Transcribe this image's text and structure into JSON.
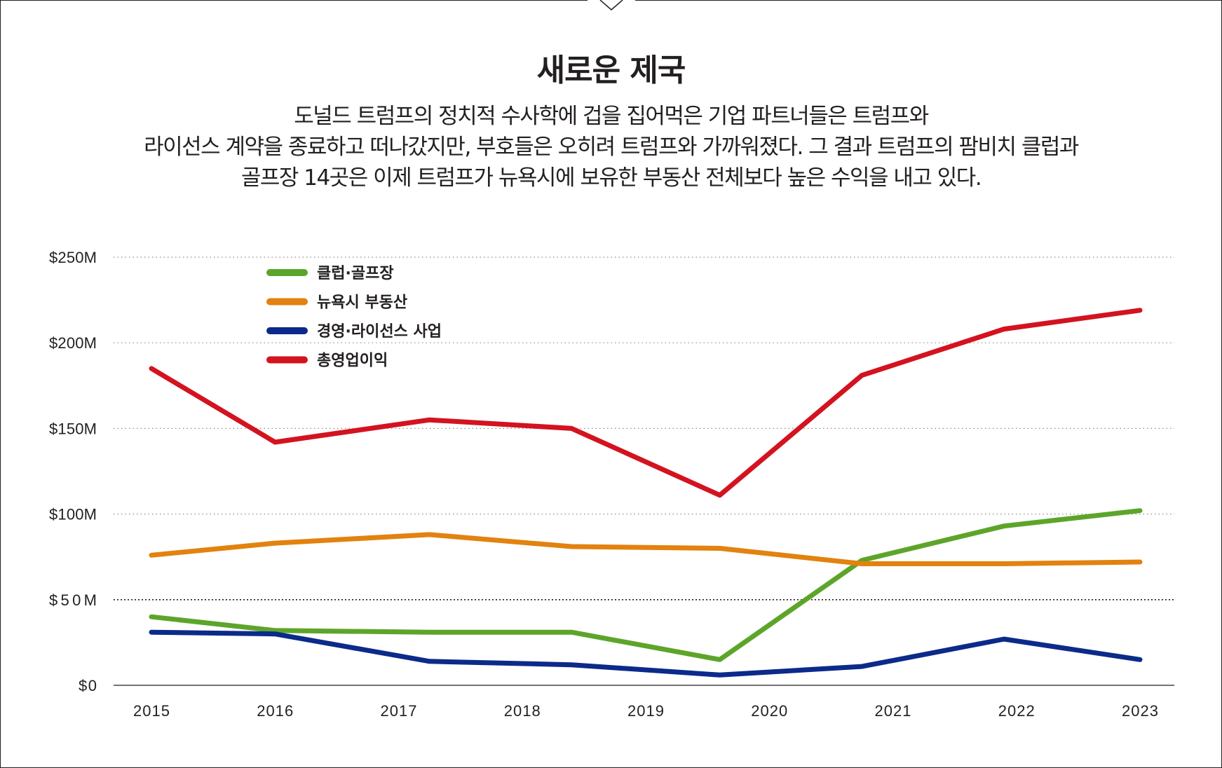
{
  "title": "새로운 제국",
  "subtitle": [
    "도널드 트럼프의 정치적 수사학에 겁을 집어먹은 기업 파트너들은 트럼프와",
    "라이선스 계약을 종료하고 떠나갔지만, 부호들은 오히려 트럼프와 가까워졌다. 그 결과 트럼프의 팜비치 클럽과",
    "골프장 14곳은 이제 트럼프가 뉴욕시에 보유한 부동산 전체보다 높은 수익을 내고 있다."
  ],
  "chart_data": {
    "type": "line",
    "title": "새로운 제국",
    "x": [
      "2015",
      "2016",
      "2017",
      "2018",
      "2019",
      "2020",
      "2021",
      "2022",
      "2023"
    ],
    "y_ticks": [
      "$0",
      "$50M",
      "$100M",
      "$150M",
      "$200M",
      "$250M"
    ],
    "ylim": [
      0,
      250
    ],
    "grid": true,
    "legend_position": "top-left",
    "series": [
      {
        "name": "클럽·골프장",
        "color": "#5da52a",
        "points": [
          [
            2015.0,
            40
          ],
          [
            2016.0,
            32
          ],
          [
            2017.25,
            31
          ],
          [
            2018.4,
            31
          ],
          [
            2019.6,
            15
          ],
          [
            2020.75,
            73
          ],
          [
            2021.9,
            93
          ],
          [
            2023.0,
            102
          ]
        ]
      },
      {
        "name": "뉴욕시 부동산",
        "color": "#e2820f",
        "points": [
          [
            2015.0,
            76
          ],
          [
            2016.0,
            83
          ],
          [
            2017.25,
            88
          ],
          [
            2018.4,
            81
          ],
          [
            2019.6,
            80
          ],
          [
            2020.75,
            71
          ],
          [
            2021.9,
            71
          ],
          [
            2023.0,
            72
          ]
        ]
      },
      {
        "name": "경영·라이선스 사업",
        "color": "#0b2a8a",
        "points": [
          [
            2015.0,
            31
          ],
          [
            2016.0,
            30
          ],
          [
            2017.25,
            14
          ],
          [
            2018.4,
            12
          ],
          [
            2019.6,
            6
          ],
          [
            2020.75,
            11
          ],
          [
            2021.9,
            27
          ],
          [
            2023.0,
            15
          ]
        ]
      },
      {
        "name": "총영업이익",
        "color": "#d3131f",
        "points": [
          [
            2015.0,
            185
          ],
          [
            2016.0,
            142
          ],
          [
            2017.25,
            155
          ],
          [
            2018.4,
            150
          ],
          [
            2019.6,
            111
          ],
          [
            2020.75,
            181
          ],
          [
            2021.9,
            208
          ],
          [
            2023.0,
            219
          ]
        ]
      }
    ]
  }
}
